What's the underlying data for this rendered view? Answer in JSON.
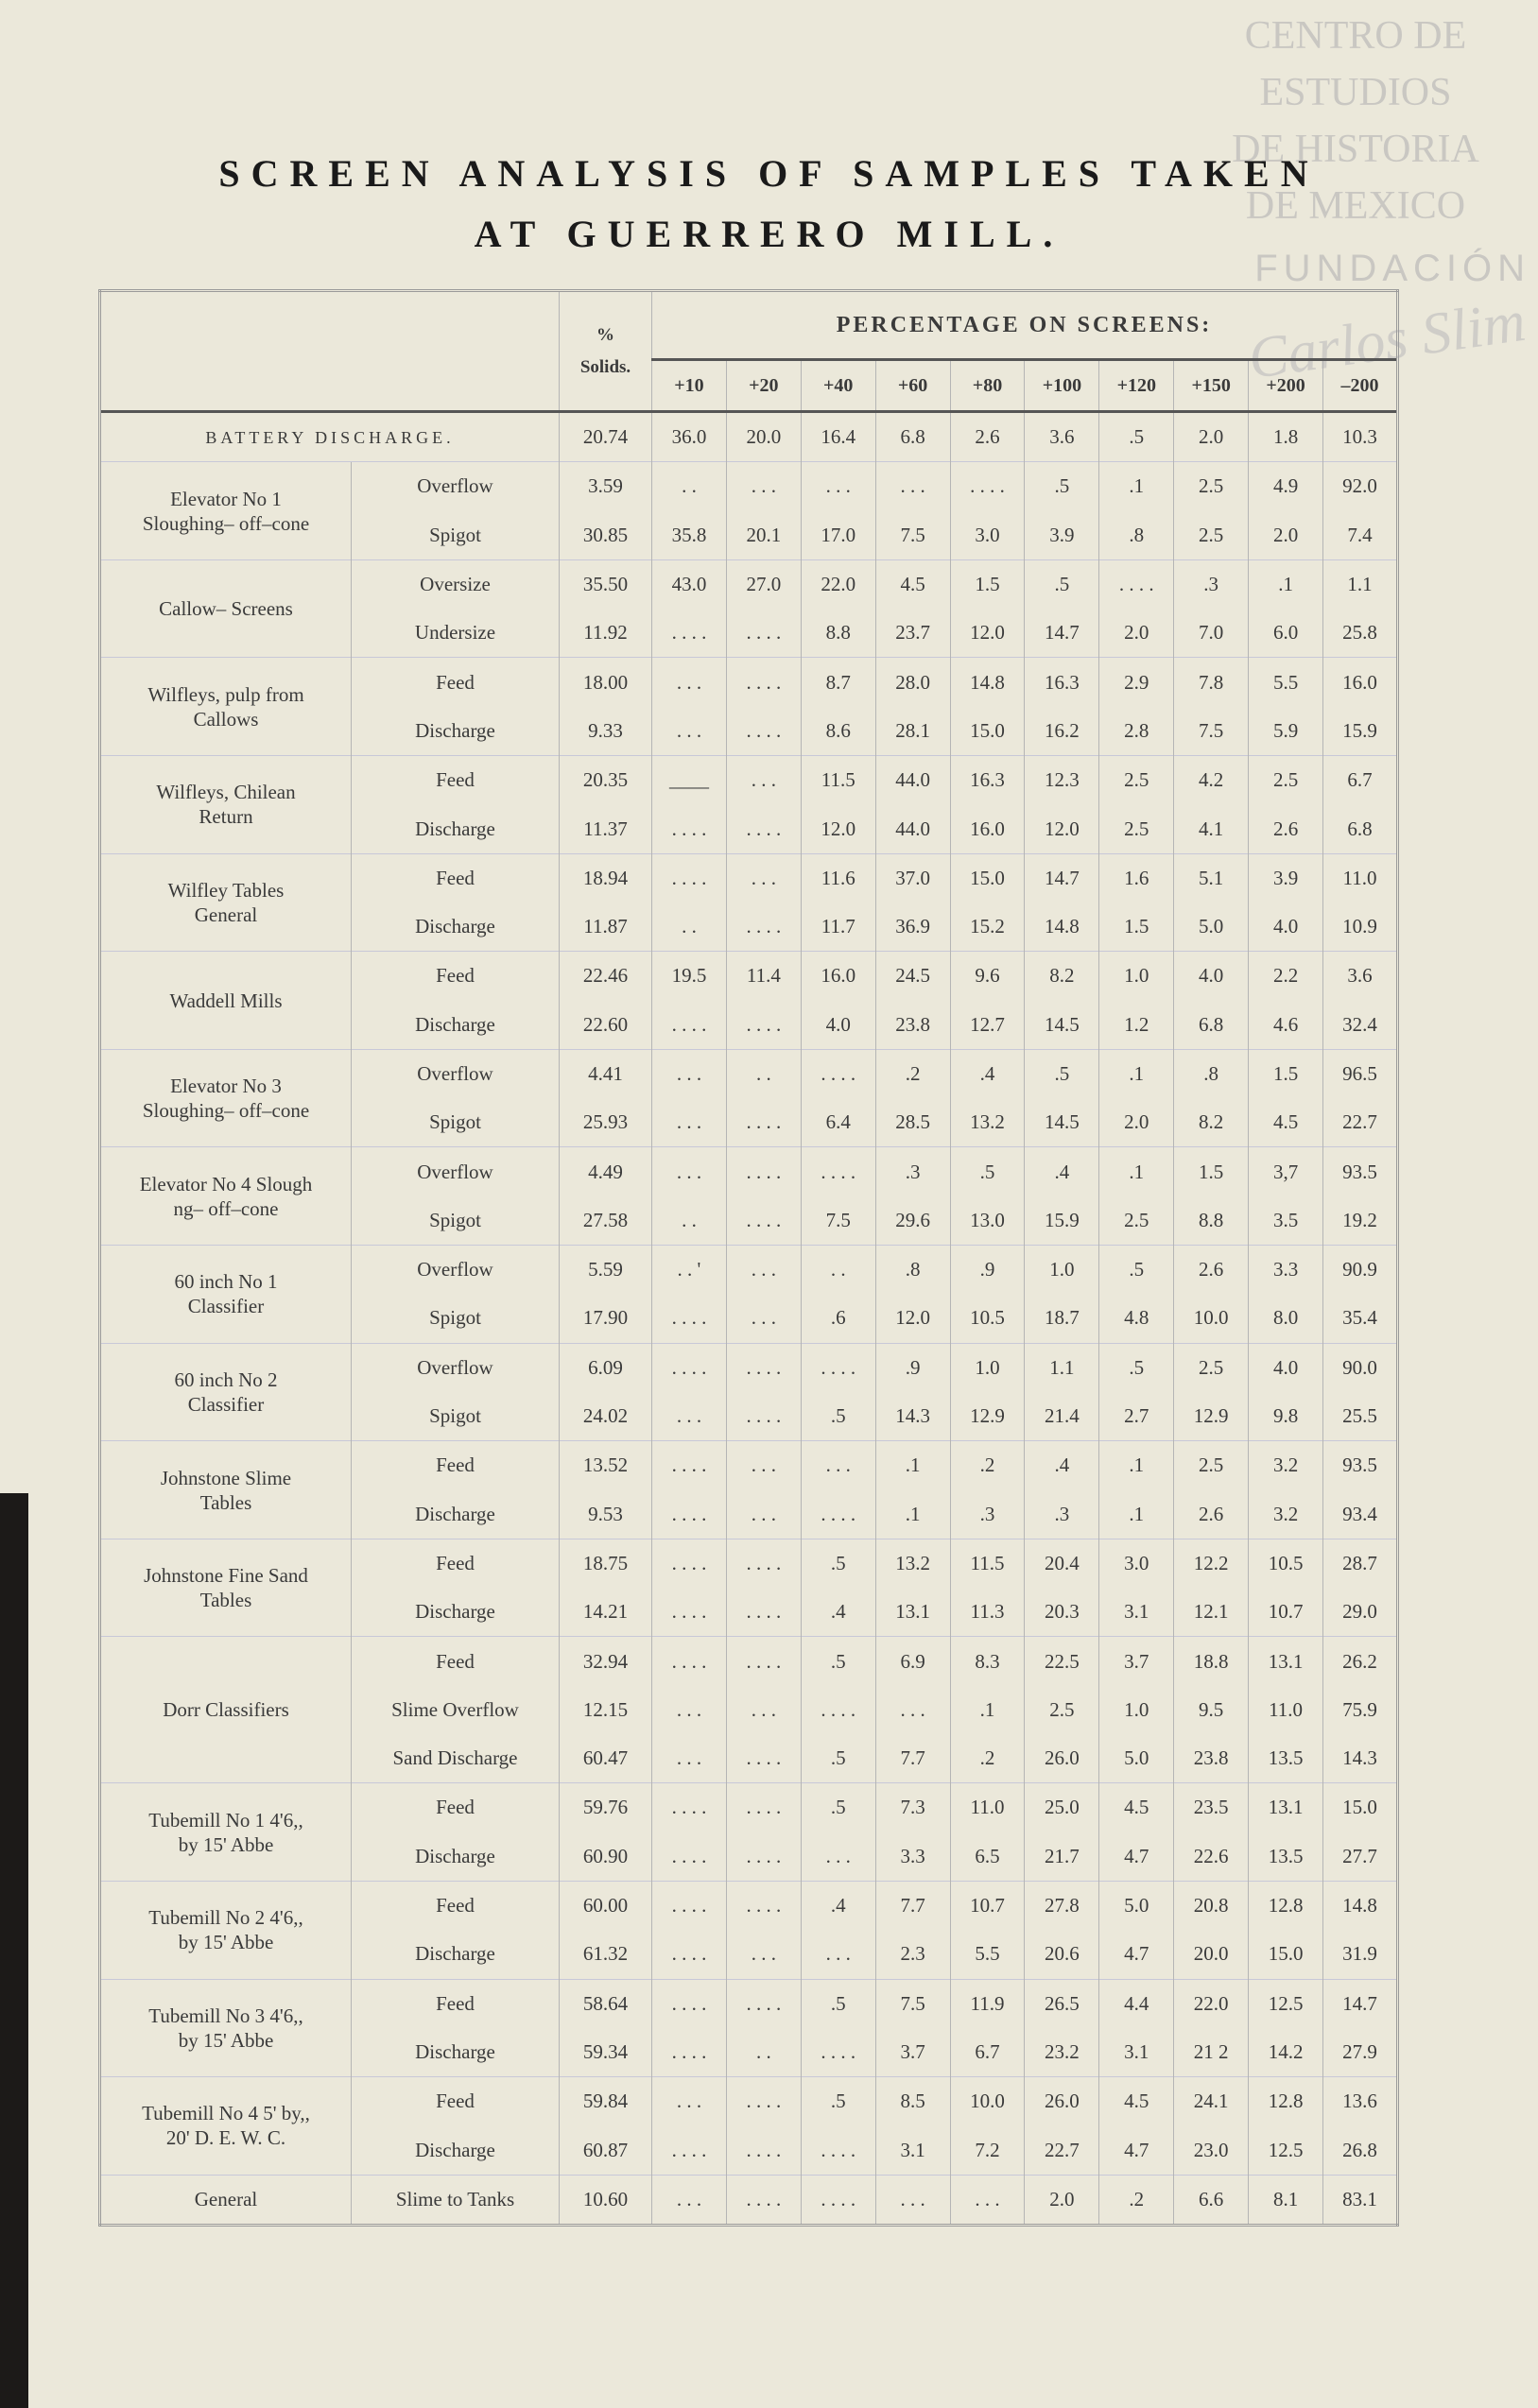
{
  "watermark": {
    "lines": [
      "CENTRO DE",
      "ESTUDIOS",
      "DE HISTORIA",
      "DE MEXICO"
    ],
    "foundation": "FUNDACIÓN",
    "signature": "Carlos Slim"
  },
  "header": {
    "title": [
      "SCREEN ANALYSIS OF SAMPLES TAKEN",
      "AT GUERRERO MILL."
    ]
  },
  "table": {
    "solids_header": [
      "%",
      "Solids."
    ],
    "screens_header": "PERCENTAGE ON SCREENS:",
    "screens": [
      "+10",
      "+20",
      "+40",
      "+60",
      "+80",
      "+100",
      "+120",
      "+150",
      "+200",
      "–200"
    ],
    "groups": [
      {
        "label": "BATTERY DISCHARGE.",
        "rows": [
          {
            "cells": [
              "20.74",
              "36.0",
              "20.0",
              "16.4",
              "6.8",
              "2.6",
              "3.6",
              ".5",
              "2.0",
              "1.8",
              "10.3"
            ]
          }
        ]
      },
      {
        "label": "Elevator No 1 Sloughing– off–cone",
        "rows": [
          {
            "sub": "Overflow",
            "cells": [
              "3.59",
              ". .",
              ". . .",
              ". . .",
              ". . .",
              ". . . .",
              ".5",
              ".1",
              "2.5",
              "4.9",
              "92.0"
            ]
          },
          {
            "sub": "Spigot",
            "cells": [
              "30.85",
              "35.8",
              "20.1",
              "17.0",
              "7.5",
              "3.0",
              "3.9",
              ".8",
              "2.5",
              "2.0",
              "7.4"
            ]
          }
        ]
      },
      {
        "label": "Callow– Screens",
        "rows": [
          {
            "sub": "Oversize",
            "cells": [
              "35.50",
              "43.0",
              "27.0",
              "22.0",
              "4.5",
              "1.5",
              ".5",
              ". . . .",
              ".3",
              ".1",
              "1.1"
            ]
          },
          {
            "sub": "Undersize",
            "cells": [
              "11.92",
              ". . . .",
              ". . . .",
              "8.8",
              "23.7",
              "12.0",
              "14.7",
              "2.0",
              "7.0",
              "6.0",
              "25.8"
            ]
          }
        ]
      },
      {
        "label": "Wilfleys, pulp from Callows",
        "rows": [
          {
            "sub": "Feed",
            "cells": [
              "18.00",
              ". . .",
              ". . . .",
              "8.7",
              "28.0",
              "14.8",
              "16.3",
              "2.9",
              "7.8",
              "5.5",
              "16.0"
            ]
          },
          {
            "sub": "Discharge",
            "cells": [
              "9.33",
              ". . .",
              ". . . .",
              "8.6",
              "28.1",
              "15.0",
              "16.2",
              "2.8",
              "7.5",
              "5.9",
              "15.9"
            ]
          }
        ]
      },
      {
        "label": "Wilfleys, Chilean Return",
        "rows": [
          {
            "sub": "Feed",
            "cells": [
              "20.35",
              "____",
              ". . .",
              "11.5",
              "44.0",
              "16.3",
              "12.3",
              "2.5",
              "4.2",
              "2.5",
              "6.7"
            ]
          },
          {
            "sub": "Discharge",
            "cells": [
              "11.37",
              ". . . .",
              ". . . .",
              "12.0",
              "44.0",
              "16.0",
              "12.0",
              "2.5",
              "4.1",
              "2.6",
              "6.8"
            ]
          }
        ]
      },
      {
        "label": "Wilfley Tables General",
        "rows": [
          {
            "sub": "Feed",
            "cells": [
              "18.94",
              ". . . .",
              ". . .",
              "11.6",
              "37.0",
              "15.0",
              "14.7",
              "1.6",
              "5.1",
              "3.9",
              "11.0"
            ]
          },
          {
            "sub": "Discharge",
            "cells": [
              "11.87",
              ". .",
              ". . . .",
              "11.7",
              "36.9",
              "15.2",
              "14.8",
              "1.5",
              "5.0",
              "4.0",
              "10.9"
            ]
          }
        ]
      },
      {
        "label": "Waddell Mills",
        "rows": [
          {
            "sub": "Feed",
            "cells": [
              "22.46",
              "19.5",
              "11.4",
              "16.0",
              "24.5",
              "9.6",
              "8.2",
              "1.0",
              "4.0",
              "2.2",
              "3.6"
            ]
          },
          {
            "sub": "Discharge",
            "cells": [
              "22.60",
              ". . . .",
              ". . . .",
              "4.0",
              "23.8",
              "12.7",
              "14.5",
              "1.2",
              "6.8",
              "4.6",
              "32.4"
            ]
          }
        ]
      },
      {
        "label": "Elevator No 3 Sloughing– off–cone",
        "rows": [
          {
            "sub": "Overflow",
            "cells": [
              "4.41",
              ". . .",
              ". .",
              ". . . .",
              ".2",
              ".4",
              ".5",
              ".1",
              ".8",
              "1.5",
              "96.5"
            ]
          },
          {
            "sub": "Spigot",
            "cells": [
              "25.93",
              ". . .",
              ". . . .",
              "6.4",
              "28.5",
              "13.2",
              "14.5",
              "2.0",
              "8.2",
              "4.5",
              "22.7"
            ]
          }
        ]
      },
      {
        "label": "Elevator No 4 Slough ng– off–cone",
        "rows": [
          {
            "sub": "Overflow",
            "cells": [
              "4.49",
              ". . .",
              ". . . .",
              ". . . .",
              ".3",
              ".5",
              ".4",
              ".1",
              "1.5",
              "3,7",
              "93.5"
            ]
          },
          {
            "sub": "Spigot",
            "cells": [
              "27.58",
              ". .",
              ". . . .",
              "7.5",
              "29.6",
              "13.0",
              "15.9",
              "2.5",
              "8.8",
              "3.5",
              "19.2"
            ]
          }
        ]
      },
      {
        "label": "60 inch No 1 Classifier",
        "rows": [
          {
            "sub": "Overflow",
            "cells": [
              "5.59",
              ". . '",
              ". . .",
              ". .",
              ".8",
              ".9",
              "1.0",
              ".5",
              "2.6",
              "3.3",
              "90.9"
            ]
          },
          {
            "sub": "Spigot",
            "cells": [
              "17.90",
              ". . . .",
              ". . .",
              ".6",
              "12.0",
              "10.5",
              "18.7",
              "4.8",
              "10.0",
              "8.0",
              "35.4"
            ]
          }
        ]
      },
      {
        "label": "60 inch No 2 Classifier",
        "rows": [
          {
            "sub": "Overflow",
            "cells": [
              "6.09",
              ". . . .",
              ". . . .",
              ". . . .",
              ".9",
              "1.0",
              "1.1",
              ".5",
              "2.5",
              "4.0",
              "90.0"
            ]
          },
          {
            "sub": "Spigot",
            "cells": [
              "24.02",
              ". . .",
              ". . . .",
              ".5",
              "14.3",
              "12.9",
              "21.4",
              "2.7",
              "12.9",
              "9.8",
              "25.5"
            ]
          }
        ]
      },
      {
        "label": "Johnstone Slime Tables",
        "rows": [
          {
            "sub": "Feed",
            "cells": [
              "13.52",
              ". . . .",
              ". . .",
              ". . .",
              ".1",
              ".2",
              ".4",
              ".1",
              "2.5",
              "3.2",
              "93.5"
            ]
          },
          {
            "sub": "Discharge",
            "cells": [
              "9.53",
              ". . . .",
              ". . .",
              ". . . .",
              ".1",
              ".3",
              ".3",
              ".1",
              "2.6",
              "3.2",
              "93.4"
            ]
          }
        ]
      },
      {
        "label": "Johnstone Fine Sand Tables",
        "rows": [
          {
            "sub": "Feed",
            "cells": [
              "18.75",
              ". . . .",
              ". . . .",
              ".5",
              "13.2",
              "11.5",
              "20.4",
              "3.0",
              "12.2",
              "10.5",
              "28.7"
            ]
          },
          {
            "sub": "Discharge",
            "cells": [
              "14.21",
              ". . . .",
              ". . . .",
              ".4",
              "13.1",
              "11.3",
              "20.3",
              "3.1",
              "12.1",
              "10.7",
              "29.0"
            ]
          }
        ]
      },
      {
        "label": "Dorr Classifiers",
        "rows": [
          {
            "sub": "Feed",
            "cells": [
              "32.94",
              ". . . .",
              ". . . .",
              ".5",
              "6.9",
              "8.3",
              "22.5",
              "3.7",
              "18.8",
              "13.1",
              "26.2"
            ]
          },
          {
            "sub": "Slime Overflow",
            "cells": [
              "12.15",
              ". . .",
              ". . .",
              ". . . .",
              ". . .",
              ".1",
              "2.5",
              "1.0",
              "9.5",
              "11.0",
              "75.9"
            ]
          },
          {
            "sub": "Sand Discharge",
            "cells": [
              "60.47",
              ". . .",
              ". . . .",
              ".5",
              "7.7",
              ".2",
              "26.0",
              "5.0",
              "23.8",
              "13.5",
              "14.3"
            ]
          }
        ]
      },
      {
        "label": "Tubemill No 1 4'6,, by 15' Abbe",
        "rows": [
          {
            "sub": "Feed",
            "cells": [
              "59.76",
              ". . . .",
              ". . . .",
              ".5",
              "7.3",
              "11.0",
              "25.0",
              "4.5",
              "23.5",
              "13.1",
              "15.0"
            ]
          },
          {
            "sub": "Discharge",
            "cells": [
              "60.90",
              ". . . .",
              ". . . .",
              ". . .",
              "3.3",
              "6.5",
              "21.7",
              "4.7",
              "22.6",
              "13.5",
              "27.7"
            ]
          }
        ]
      },
      {
        "label": "Tubemill No 2 4'6,, by 15' Abbe",
        "rows": [
          {
            "sub": "Feed",
            "cells": [
              "60.00",
              ". . . .",
              ". . . .",
              ".4",
              "7.7",
              "10.7",
              "27.8",
              "5.0",
              "20.8",
              "12.8",
              "14.8"
            ]
          },
          {
            "sub": "Discharge",
            "cells": [
              "61.32",
              ". . . .",
              ". . .",
              ". . .",
              "2.3",
              "5.5",
              "20.6",
              "4.7",
              "20.0",
              "15.0",
              "31.9"
            ]
          }
        ]
      },
      {
        "label": "Tubemill No 3 4'6,, by 15' Abbe",
        "rows": [
          {
            "sub": "Feed",
            "cells": [
              "58.64",
              ". . . .",
              ". . . .",
              ".5",
              "7.5",
              "11.9",
              "26.5",
              "4.4",
              "22.0",
              "12.5",
              "14.7"
            ]
          },
          {
            "sub": "Discharge",
            "cells": [
              "59.34",
              ". . . .",
              ". .",
              ". . . .",
              "3.7",
              "6.7",
              "23.2",
              "3.1",
              "21 2",
              "14.2",
              "27.9"
            ]
          }
        ]
      },
      {
        "label": "Tubemill No 4 5' by,, 20' D. E. W. C.",
        "rows": [
          {
            "sub": "Feed",
            "cells": [
              "59.84",
              ". . .",
              ". . . .",
              ".5",
              "8.5",
              "10.0",
              "26.0",
              "4.5",
              "24.1",
              "12.8",
              "13.6"
            ]
          },
          {
            "sub": "Discharge",
            "cells": [
              "60.87",
              ". . . .",
              ". . . .",
              ". . . .",
              "3.1",
              "7.2",
              "22.7",
              "4.7",
              "23.0",
              "12.5",
              "26.8"
            ]
          }
        ]
      },
      {
        "label": "General",
        "rows": [
          {
            "sub": "Slime to Tanks",
            "cells": [
              "10.60",
              ". . .",
              ". . . .",
              ". . . .",
              ". . .",
              ". . .",
              "2.0",
              ".2",
              "6.6",
              "8.1",
              "83.1"
            ]
          }
        ]
      }
    ]
  }
}
